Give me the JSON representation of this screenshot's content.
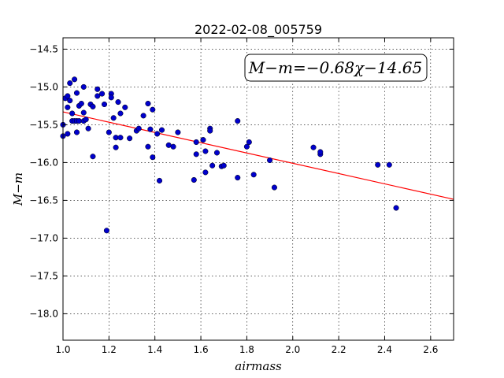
{
  "chart_data": {
    "type": "scatter",
    "title": "2022-02-08_005759",
    "xlabel": "airmass",
    "ylabel": "M−m",
    "xlim": [
      1.0,
      2.7
    ],
    "ylim": [
      -18.35,
      -14.35
    ],
    "y_inverted": true,
    "xticks": [
      1.0,
      1.2,
      1.4,
      1.6,
      1.8,
      2.0,
      2.2,
      2.4,
      2.6
    ],
    "xtick_labels": [
      "1.0",
      "1.2",
      "1.4",
      "1.6",
      "1.8",
      "2.0",
      "2.2",
      "2.4",
      "2.6"
    ],
    "yticks": [
      -14.5,
      -15.0,
      -15.5,
      -16.0,
      -16.5,
      -17.0,
      -17.5,
      -18.0
    ],
    "ytick_labels": [
      "−14.5",
      "−15.0",
      "−15.5",
      "−16.0",
      "−16.5",
      "−17.0",
      "−17.5",
      "−18.0"
    ],
    "grid": true,
    "annotation": "M−m=−0.68χ−14.65",
    "fit": {
      "slope": -0.68,
      "intercept": -14.65,
      "color": "#ff0000"
    },
    "point_color": "#0000cc",
    "points": [
      [
        1.0,
        -15.5
      ],
      [
        1.0,
        -15.65
      ],
      [
        1.01,
        -15.15
      ],
      [
        1.02,
        -15.12
      ],
      [
        1.02,
        -15.62
      ],
      [
        1.02,
        -15.27
      ],
      [
        1.03,
        -15.18
      ],
      [
        1.03,
        -14.95
      ],
      [
        1.04,
        -15.35
      ],
      [
        1.04,
        -15.45
      ],
      [
        1.05,
        -14.9
      ],
      [
        1.05,
        -15.45
      ],
      [
        1.06,
        -15.08
      ],
      [
        1.06,
        -15.6
      ],
      [
        1.06,
        -15.45
      ],
      [
        1.07,
        -15.25
      ],
      [
        1.07,
        -15.45
      ],
      [
        1.08,
        -15.22
      ],
      [
        1.09,
        -15.0
      ],
      [
        1.09,
        -15.34
      ],
      [
        1.09,
        -15.45
      ],
      [
        1.1,
        -15.43
      ],
      [
        1.11,
        -15.55
      ],
      [
        1.12,
        -15.23
      ],
      [
        1.13,
        -15.26
      ],
      [
        1.13,
        -15.92
      ],
      [
        1.15,
        -15.03
      ],
      [
        1.15,
        -15.12
      ],
      [
        1.17,
        -15.09
      ],
      [
        1.18,
        -15.23
      ],
      [
        1.19,
        -16.9
      ],
      [
        1.2,
        -15.6
      ],
      [
        1.21,
        -15.09
      ],
      [
        1.21,
        -15.14
      ],
      [
        1.22,
        -15.41
      ],
      [
        1.23,
        -15.8
      ],
      [
        1.23,
        -15.67
      ],
      [
        1.24,
        -15.2
      ],
      [
        1.25,
        -15.67
      ],
      [
        1.25,
        -15.35
      ],
      [
        1.27,
        -15.27
      ],
      [
        1.29,
        -15.68
      ],
      [
        1.32,
        -15.58
      ],
      [
        1.33,
        -15.55
      ],
      [
        1.35,
        -15.38
      ],
      [
        1.37,
        -15.22
      ],
      [
        1.37,
        -15.79
      ],
      [
        1.38,
        -15.56
      ],
      [
        1.39,
        -15.93
      ],
      [
        1.39,
        -15.3
      ],
      [
        1.41,
        -15.62
      ],
      [
        1.42,
        -16.24
      ],
      [
        1.43,
        -15.57
      ],
      [
        1.46,
        -15.77
      ],
      [
        1.48,
        -15.79
      ],
      [
        1.5,
        -15.6
      ],
      [
        1.57,
        -16.23
      ],
      [
        1.58,
        -15.73
      ],
      [
        1.58,
        -15.89
      ],
      [
        1.61,
        -15.7
      ],
      [
        1.62,
        -15.85
      ],
      [
        1.62,
        -16.13
      ],
      [
        1.64,
        -15.55
      ],
      [
        1.64,
        -15.58
      ],
      [
        1.65,
        -16.04
      ],
      [
        1.67,
        -15.87
      ],
      [
        1.69,
        -16.05
      ],
      [
        1.7,
        -16.04
      ],
      [
        1.76,
        -15.45
      ],
      [
        1.76,
        -16.2
      ],
      [
        1.8,
        -15.79
      ],
      [
        1.81,
        -15.73
      ],
      [
        1.83,
        -16.16
      ],
      [
        1.9,
        -15.97
      ],
      [
        1.92,
        -16.33
      ],
      [
        2.09,
        -15.8
      ],
      [
        2.12,
        -15.89
      ],
      [
        2.12,
        -15.86
      ],
      [
        2.37,
        -16.03
      ],
      [
        2.42,
        -16.03
      ],
      [
        2.45,
        -16.6
      ]
    ]
  }
}
